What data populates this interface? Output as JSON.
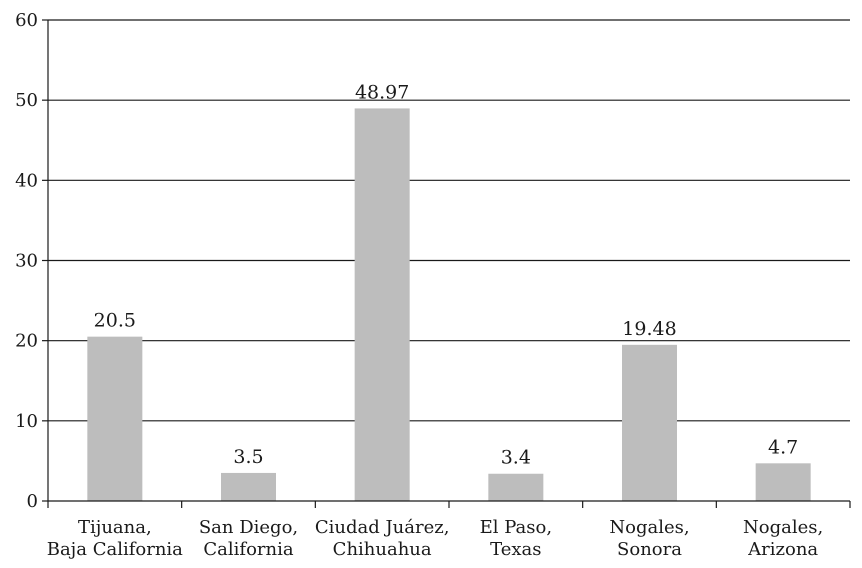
{
  "chart_data": {
    "type": "bar",
    "title": "",
    "xlabel": "",
    "ylabel": "",
    "ylim": [
      0,
      60
    ],
    "yticks": [
      0,
      10,
      20,
      30,
      40,
      50,
      60
    ],
    "grid": true,
    "bar_color": "#bdbdbd",
    "categories": [
      [
        "Tijuana,",
        "Baja California"
      ],
      [
        "San Diego,",
        "California"
      ],
      [
        "Ciudad Juárez,",
        "Chihuahua"
      ],
      [
        "El Paso,",
        "Texas"
      ],
      [
        "Nogales,",
        "Sonora"
      ],
      [
        "Nogales,",
        "Arizona"
      ]
    ],
    "values": [
      20.5,
      3.5,
      48.97,
      3.4,
      19.48,
      4.7
    ],
    "data_labels": [
      "20.5",
      "3.5",
      "48.97",
      "3.4",
      "19.48",
      "4.7"
    ]
  }
}
